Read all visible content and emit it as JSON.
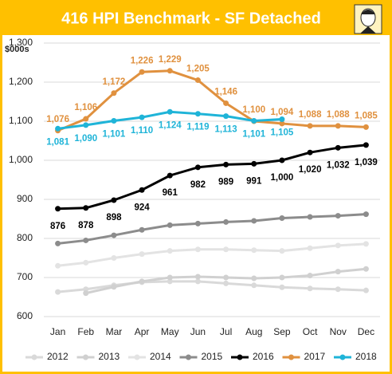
{
  "chart_data": {
    "type": "line",
    "title": "416 HPI Benchmark - SF Detached",
    "ylabel": "$000s",
    "categories": [
      "Jan",
      "Feb",
      "Mar",
      "Apr",
      "May",
      "Jun",
      "Jul",
      "Aug",
      "Sep",
      "Oct",
      "Nov",
      "Dec"
    ],
    "ylim": [
      600,
      1300
    ],
    "yticks": [
      600,
      700,
      800,
      900,
      {
        "value": 1000,
        "label": "1,000"
      },
      {
        "value": 1100,
        "label": "1,100"
      },
      {
        "value": 1200,
        "label": "1,200"
      },
      {
        "value": 1300,
        "label": "1,300"
      }
    ],
    "grid": true,
    "legend": "bottom",
    "series": [
      {
        "name": "2012",
        "color": "#d9d9d9",
        "values": [
          663,
          670,
          680,
          688,
          690,
          690,
          685,
          680,
          675,
          672,
          670,
          667
        ]
      },
      {
        "name": "2013",
        "color": "#d0d0d0",
        "values": [
          null,
          660,
          676,
          690,
          700,
          702,
          700,
          698,
          700,
          705,
          715,
          722
        ]
      },
      {
        "name": "2014",
        "color": "#e3e3e3",
        "values": [
          730,
          738,
          750,
          760,
          768,
          772,
          772,
          770,
          768,
          775,
          782,
          786
        ]
      },
      {
        "name": "2015",
        "color": "#8c8c8c",
        "values": [
          787,
          795,
          808,
          822,
          834,
          838,
          842,
          845,
          852,
          855,
          858,
          862
        ]
      },
      {
        "name": "2016",
        "color": "#000000",
        "values": [
          876,
          878,
          898,
          924,
          961,
          982,
          989,
          991,
          1000,
          1020,
          1032,
          1039
        ],
        "value_labels": [
          "876",
          "878",
          "898",
          "924",
          "961",
          "982",
          "989",
          "991",
          "1,000",
          "1,020",
          "1,032",
          "1,039"
        ]
      },
      {
        "name": "2017",
        "color": "#e0913f",
        "values": [
          1076,
          1106,
          1172,
          1226,
          1229,
          1205,
          1146,
          1100,
          1094,
          1088,
          1088,
          1085
        ],
        "value_labels": [
          "1,076",
          "1,106",
          "1,172",
          "1,226",
          "1,229",
          "1,205",
          "1,146",
          "1,100",
          "1,094",
          "1,088",
          "1,088",
          "1,085"
        ]
      },
      {
        "name": "2018",
        "color": "#1fb4d8",
        "values": [
          1081,
          1090,
          1101,
          1110,
          1124,
          1119,
          1113,
          1101,
          1105,
          null,
          null,
          null
        ],
        "value_labels": [
          "1,081",
          "1,090",
          "1,101",
          "1,110",
          "1,124",
          "1,119",
          "1,113",
          "1,101",
          "1,105",
          null,
          null,
          null
        ]
      }
    ]
  }
}
